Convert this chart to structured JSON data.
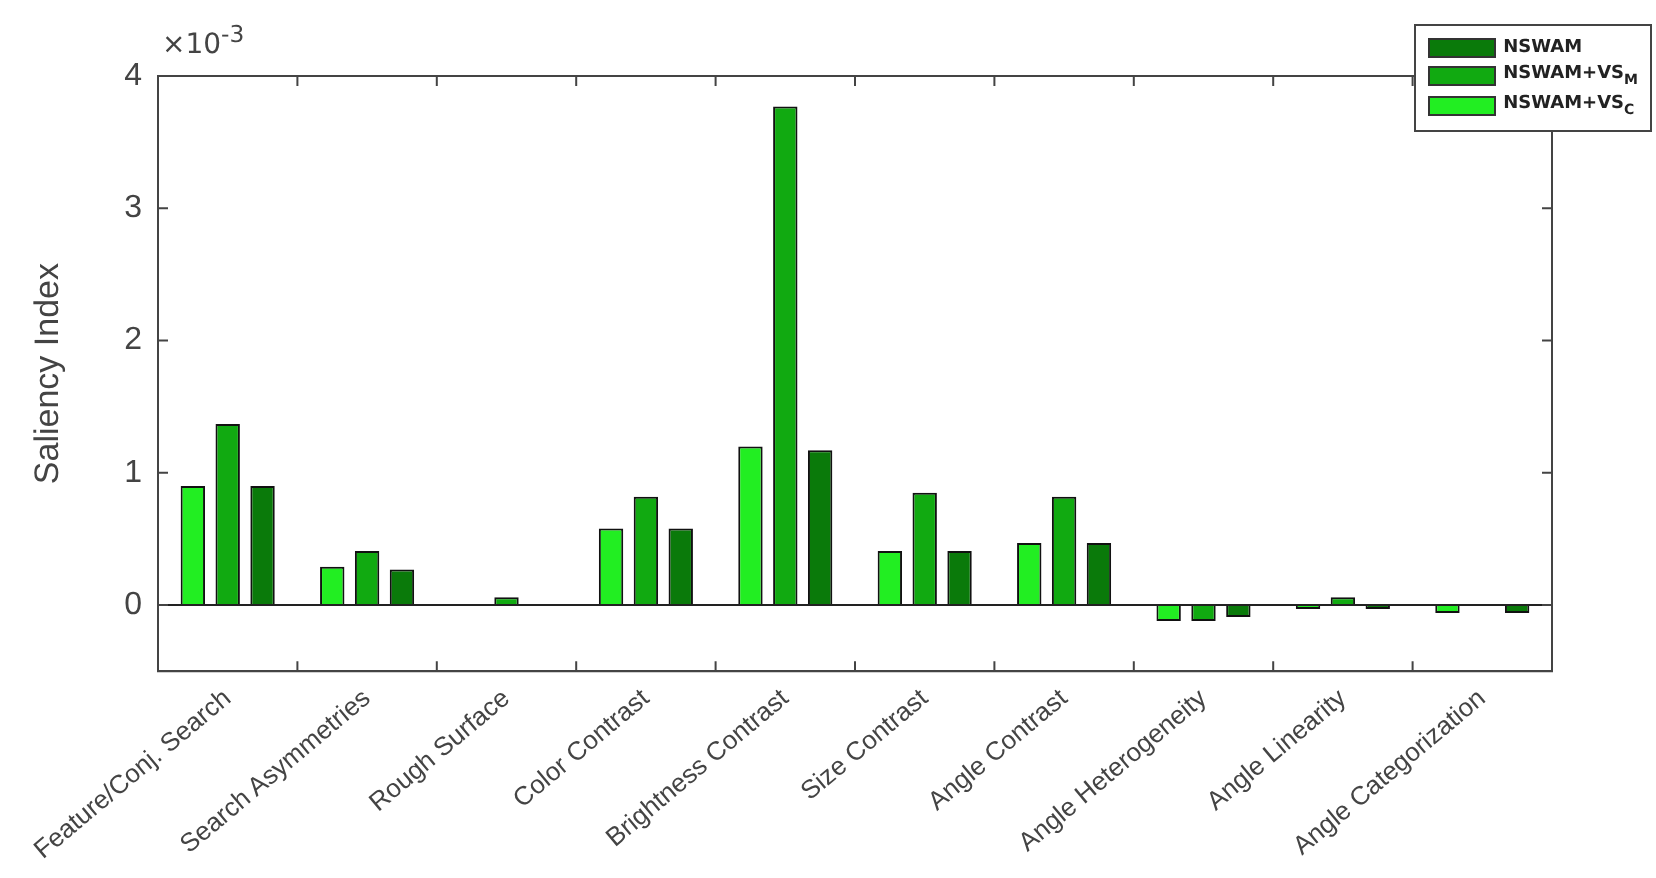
{
  "chart_data": {
    "type": "bar",
    "ylabel": "Saliency Index",
    "annotations": [
      "×10$^{-3}$"
    ],
    "categories": [
      "Feature/Conj. Search",
      "Search Asymmetries",
      "Rough Surface",
      "Color Contrast",
      "Brightness Contrast",
      "Size Contrast",
      "Angle Contrast",
      "Angle Heterogeneity",
      "Angle Linearity",
      "Angle Categorization"
    ],
    "series": [
      {
        "name": "NSWAM+VS$_{C}$",
        "color": "#22ee22",
        "values": [
          0.9,
          0.29,
          0,
          0.58,
          1.2,
          0.41,
          0.47,
          -0.12,
          -0.03,
          -0.06
        ]
      },
      {
        "name": "NSWAM+VS$_{M}$",
        "color": "#11aa11",
        "values": [
          1.37,
          0.41,
          0.06,
          0.82,
          3.77,
          0.85,
          0.82,
          -0.12,
          0.06,
          0
        ]
      },
      {
        "name": "NSWAM",
        "color": "#0a7a0a",
        "values": [
          0.9,
          0.27,
          0,
          0.58,
          1.17,
          0.41,
          0.47,
          -0.09,
          -0.03,
          -0.06
        ]
      }
    ],
    "ylim": [
      -0.5,
      4
    ],
    "yticks": [
      0,
      1,
      2,
      3,
      4
    ],
    "ref_lines": [
      {
        "axis": "y",
        "value": 0,
        "color": "#222222"
      }
    ],
    "legend": "top right",
    "grid": false
  }
}
